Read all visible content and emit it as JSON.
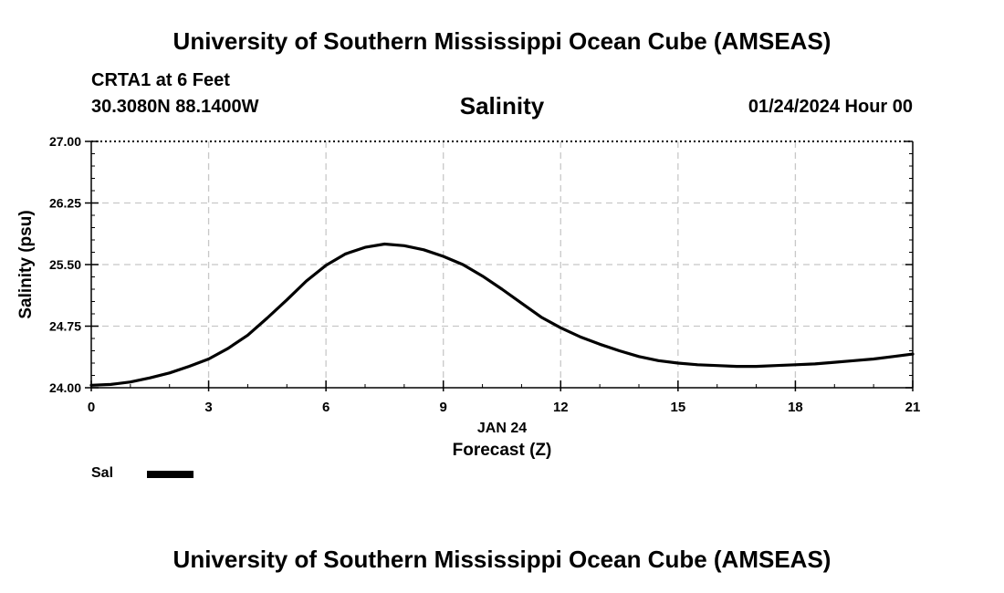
{
  "page": {
    "title_top": "University of Southern Mississippi Ocean Cube (AMSEAS)",
    "title_bottom": "University of Southern Mississippi Ocean Cube (AMSEAS)",
    "station": "CRTA1 at 6 Feet",
    "coords": "30.3080N  88.1400W",
    "date": "01/24/2024 Hour 00"
  },
  "chart_data": {
    "type": "line",
    "title": "Salinity",
    "xlabel": "Forecast (Z)",
    "xlabel_date": "JAN 24",
    "ylabel": "Salinity (psu)",
    "xlim": [
      0,
      21
    ],
    "ylim": [
      24.0,
      27.0
    ],
    "x_ticks": [
      0,
      3,
      6,
      9,
      12,
      15,
      18,
      21
    ],
    "y_ticks": [
      24.0,
      24.75,
      25.5,
      26.25,
      27.0
    ],
    "y_tick_labels": [
      "24.00",
      "24.75",
      "25.50",
      "26.25",
      "27.00"
    ],
    "grid": true,
    "legend_position": "bottom-left",
    "series": [
      {
        "name": "Sal",
        "color": "#000000",
        "x": [
          0,
          0.5,
          1,
          1.5,
          2,
          2.5,
          3,
          3.5,
          4,
          4.5,
          5,
          5.5,
          6,
          6.5,
          7,
          7.5,
          8,
          8.5,
          9,
          9.5,
          10,
          10.5,
          11,
          11.5,
          12,
          12.5,
          13,
          13.5,
          14,
          14.5,
          15,
          15.5,
          16,
          16.5,
          17,
          17.5,
          18,
          18.5,
          19,
          19.5,
          20,
          20.5,
          21
        ],
        "values": [
          24.03,
          24.04,
          24.07,
          24.12,
          24.18,
          24.26,
          24.35,
          24.48,
          24.64,
          24.85,
          25.07,
          25.3,
          25.49,
          25.63,
          25.71,
          25.75,
          25.73,
          25.68,
          25.6,
          25.5,
          25.36,
          25.2,
          25.03,
          24.86,
          24.73,
          24.62,
          24.53,
          24.45,
          24.38,
          24.33,
          24.3,
          24.28,
          24.27,
          24.26,
          24.26,
          24.27,
          24.28,
          24.29,
          24.31,
          24.33,
          24.35,
          24.38,
          24.41
        ]
      }
    ]
  }
}
